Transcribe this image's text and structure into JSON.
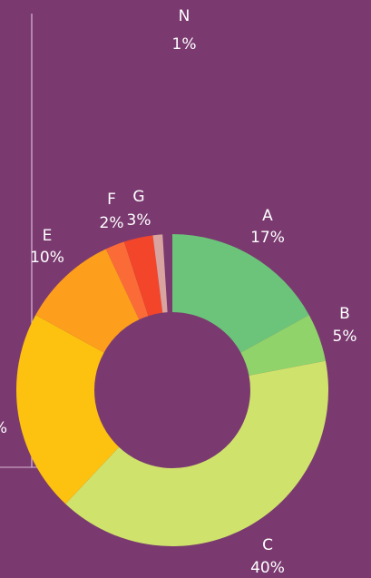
{
  "chart_data": {
    "type": "donut",
    "categories": [
      "A",
      "B",
      "C",
      null,
      "E",
      "F",
      "G",
      "N"
    ],
    "values": [
      17,
      5,
      40,
      21,
      10,
      2,
      3,
      1
    ],
    "value_labels": [
      "17%",
      "5%",
      "40%",
      "%",
      "10%",
      "2%",
      "3%",
      "1%"
    ],
    "colors": [
      "#6cc47a",
      "#8fd36a",
      "#cfe36c",
      "#fdc10f",
      "#fd9e1c",
      "#fb6b38",
      "#f2452a",
      "#d9a3a0"
    ]
  }
}
